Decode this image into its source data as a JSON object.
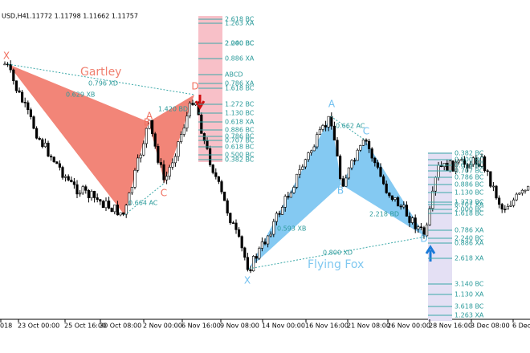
{
  "header": {
    "symbol": "USD,H4",
    "quote": "1.11772 1.11798 1.11662 1.11757"
  },
  "gartley": {
    "name": "Gartley",
    "points": [
      "X",
      "A",
      "B",
      "C",
      "D"
    ],
    "ratios": [
      "0.796 XD",
      "0.629 XB",
      "0.664 AC",
      "1.420 BD"
    ]
  },
  "flying_fox": {
    "name": "Flying Fox",
    "points": [
      "X",
      "A",
      "B",
      "C",
      "D"
    ],
    "ratios": [
      "0.662 AC",
      "0.593 XB",
      "2.218 BD",
      "0.800 XD"
    ]
  },
  "levels_1": [
    "2.618 BC",
    "1.263 XA",
    "2.240 BC",
    "2.000 BC",
    "0.886 XA",
    "ABCD",
    "0.786 XA",
    "1.618 BC",
    "1.272 BC",
    "1.130 BC",
    "0.618 XA",
    "0.886 BC",
    "0.786 BC",
    "0.707 BC",
    "0.618 BC",
    "0.500 BC",
    "0.382 BC"
  ],
  "levels_2": [
    "0.382 BC",
    "0.500 BC",
    "0.618 BC",
    "0.707 BC",
    "0.786 BC",
    "0.886 BC",
    "1.130 BC",
    "1.272 BC",
    "1.618 BC",
    "0.707 XA",
    "2.000 BC",
    "0.786 XA",
    "2.240 BC",
    "0.886 XA",
    "2.618 XA",
    "3.140 BC",
    "1.130 XA",
    "3.618 BC",
    "1.263 XA"
  ],
  "x_axis": [
    "018",
    "23 Oct 00:00",
    "25 Oct 16:00",
    "30 Oct 08:00",
    "2 Nov 00:00",
    "6 Nov 16:00",
    "9 Nov 08:00",
    "14 Nov 00:00",
    "16 Nov 16:00",
    "21 Nov 08:00",
    "26 Nov 00:00",
    "28 Nov 16:00",
    "3 Dec 08:00",
    "6 Dec"
  ]
}
